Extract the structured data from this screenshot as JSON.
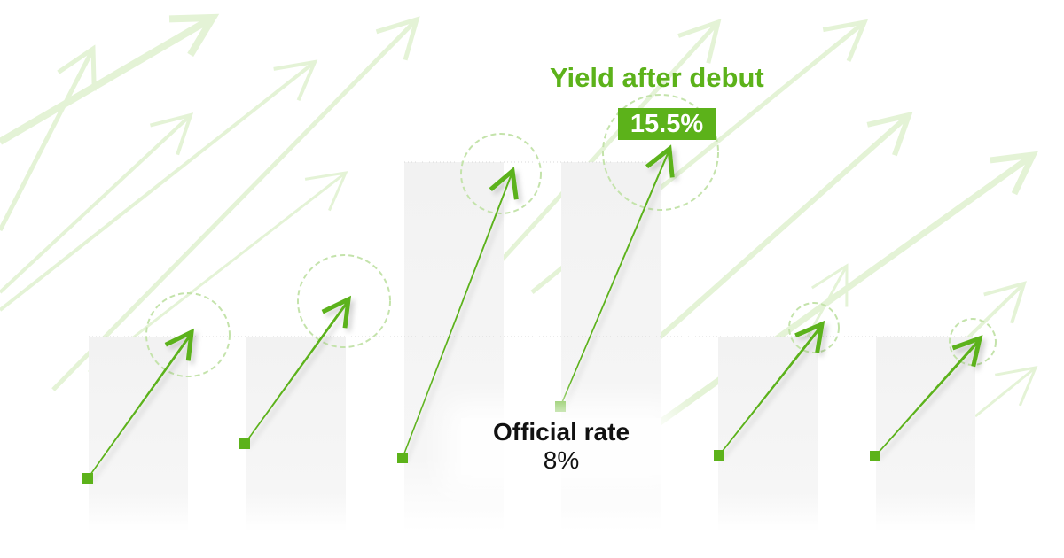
{
  "colors": {
    "accent": "#5cb21a",
    "accent_light": "#e6f4da",
    "bar": "#f3f3f3",
    "text": "#111111"
  },
  "headline": {
    "label": "Yield after debut",
    "value": "15.5%"
  },
  "baseline": {
    "label": "Official rate",
    "value": "8%"
  },
  "icons": [
    "up-right-arrow-icon"
  ]
}
